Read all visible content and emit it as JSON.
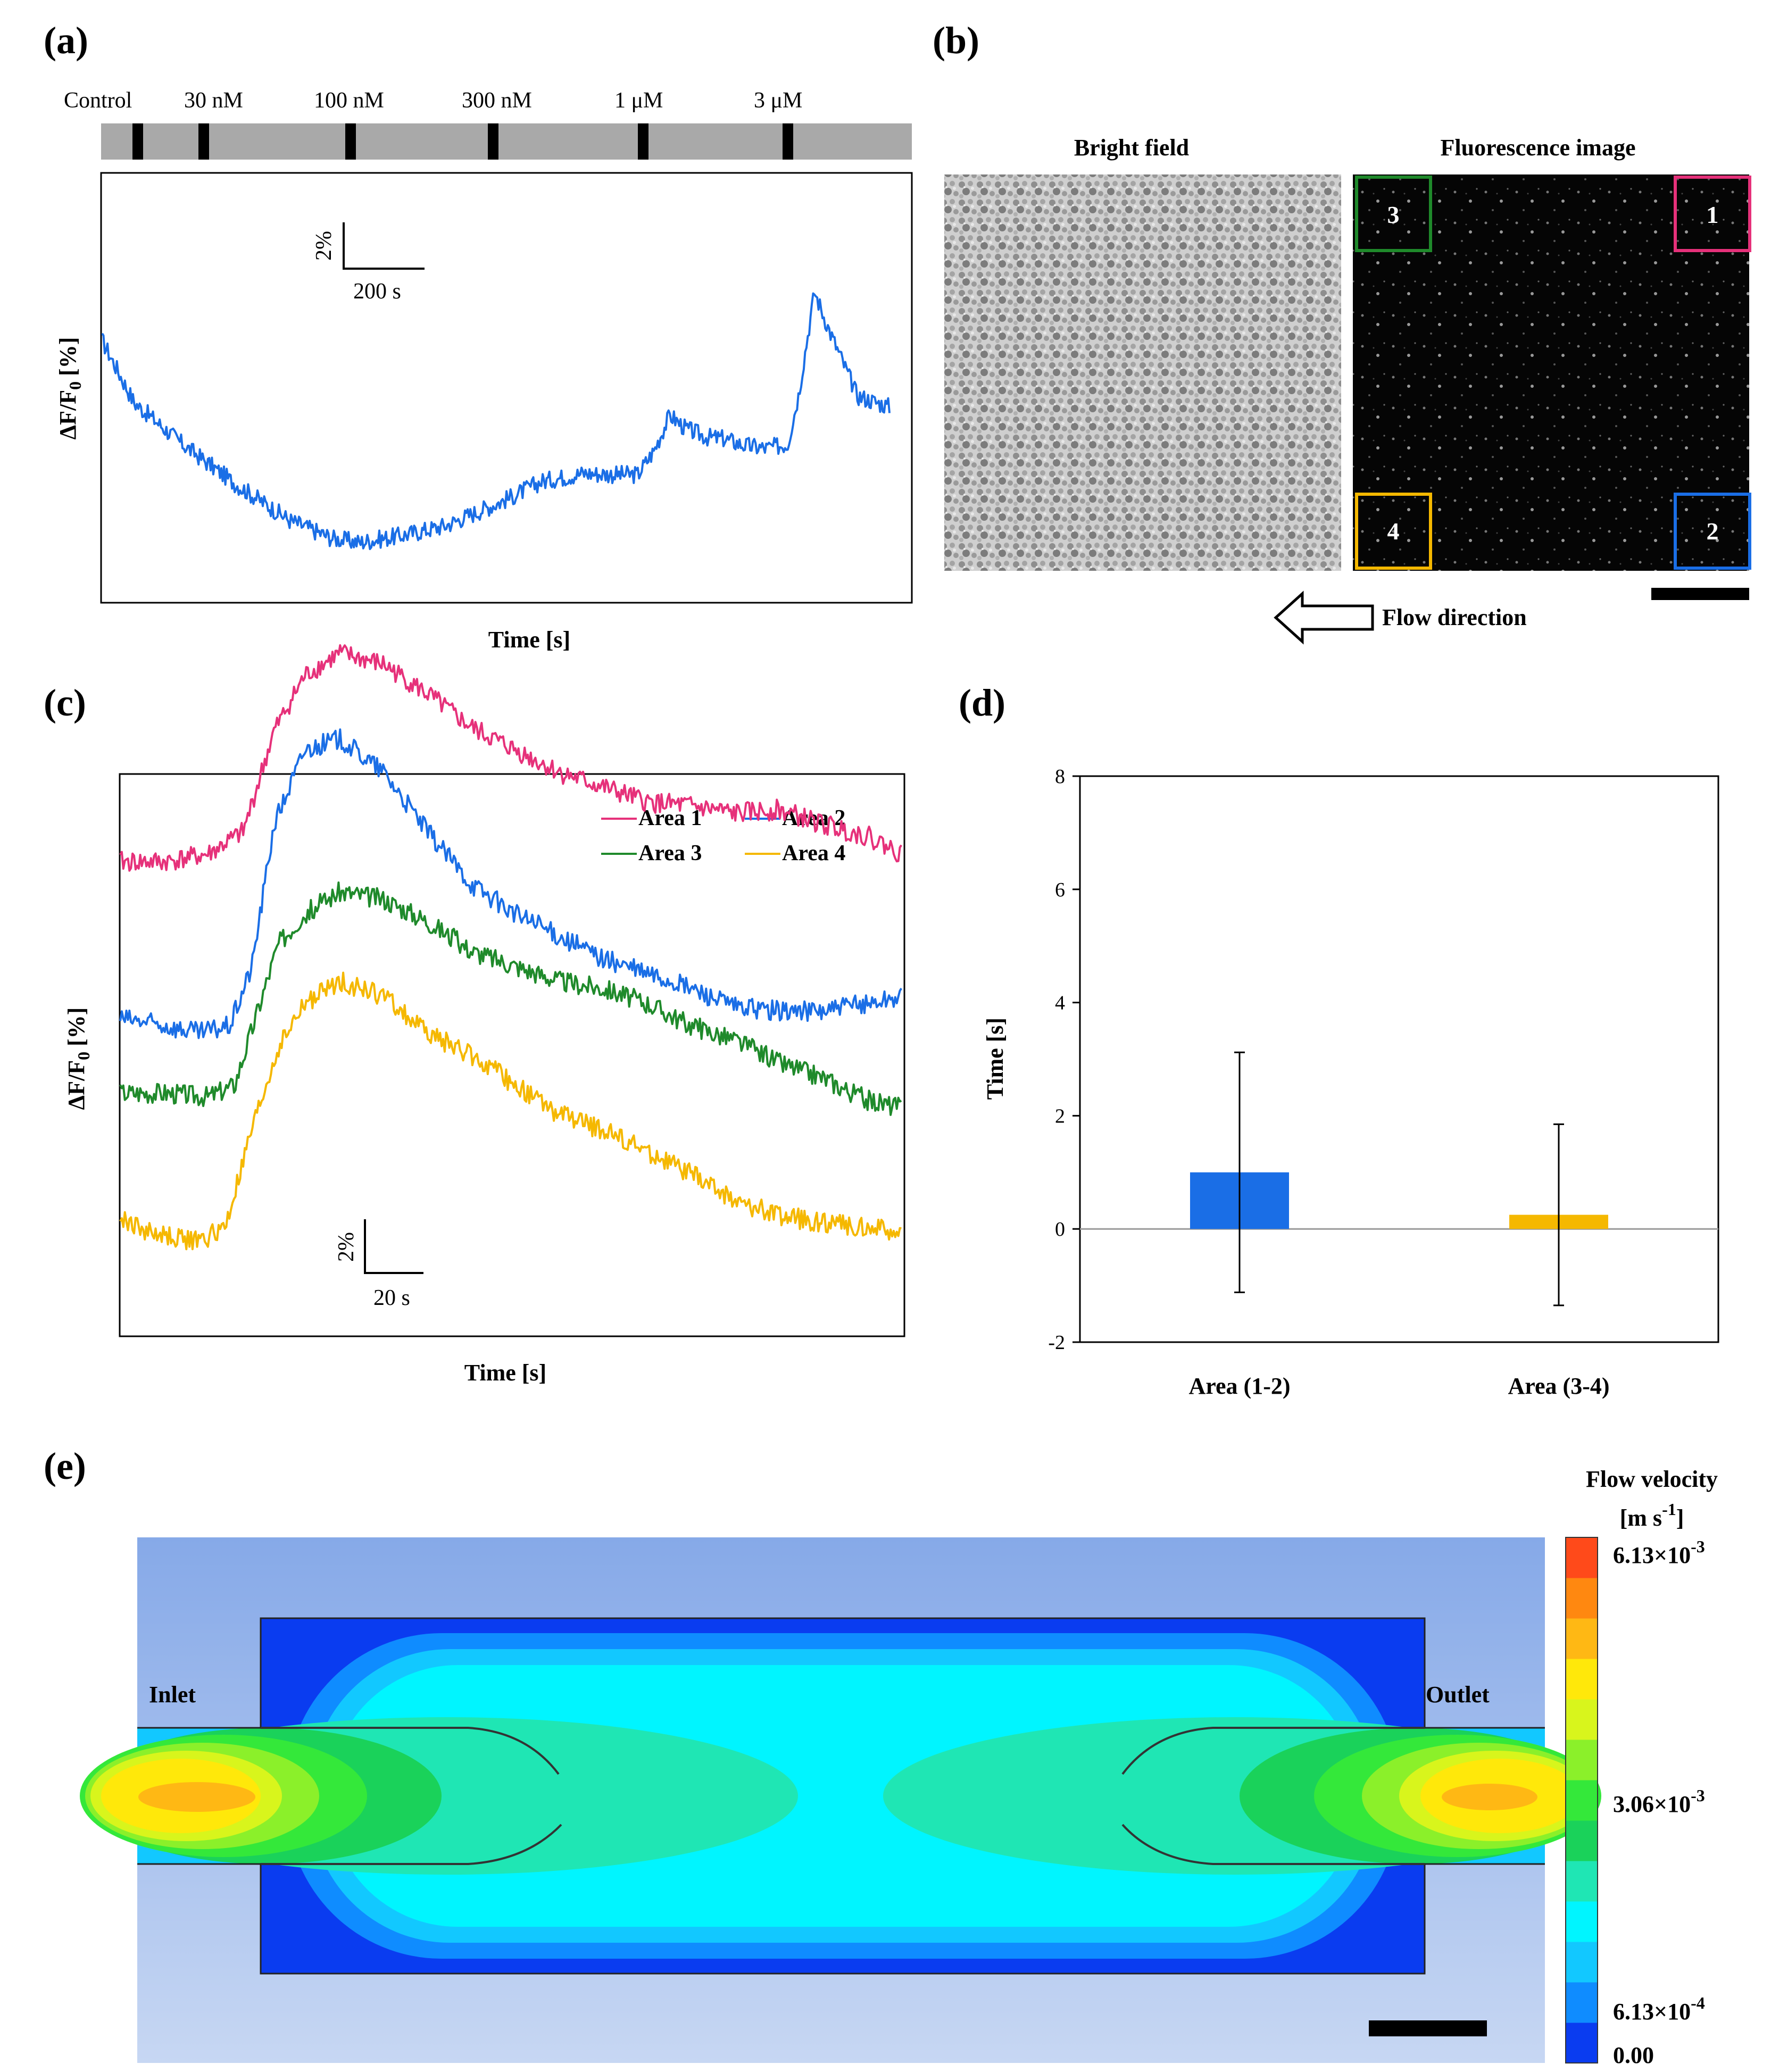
{
  "colors": {
    "blue": "#1a6ee6",
    "pink": "#e6317a",
    "green": "#1f8a2b",
    "yellow": "#f5b800",
    "bar_gray": "#a9a9a9"
  },
  "panel_a": {
    "label": "(a)",
    "timeline_labels": [
      "Control",
      "30 nM",
      "100 nM",
      "300 nM",
      "1 μM",
      "3 μM"
    ],
    "scalebar_y": "2%",
    "scalebar_x": "200 s",
    "ylabel": "ΔF/F",
    "ylabel_sub": "0",
    "ylabel_unit": "[%]",
    "xlabel": "Time [s]"
  },
  "panel_b": {
    "label": "(b)",
    "bright_title": "Bright field",
    "fluor_title": "Fluorescence image",
    "boxes": [
      {
        "num": "1",
        "color": "#e6317a"
      },
      {
        "num": "2",
        "color": "#1a6ee6"
      },
      {
        "num": "3",
        "color": "#1f8a2b"
      },
      {
        "num": "4",
        "color": "#f5b800"
      }
    ],
    "flow_label": "Flow direction"
  },
  "panel_c": {
    "label": "(c)",
    "legend": [
      "Area 1",
      "Area 2",
      "Area 3",
      "Area 4"
    ],
    "scalebar_y": "2%",
    "scalebar_x": "20 s",
    "ylabel": "ΔF/F",
    "ylabel_sub": "0",
    "ylabel_unit": "[%]",
    "xlabel": "Time [s]"
  },
  "chart_data": [
    {
      "type": "line",
      "panel": "(a)",
      "xlabel": "Time [s]",
      "ylabel": "ΔF/F0 [%]",
      "series": [
        {
          "color": "#1a6ee6",
          "x": [
            0,
            60,
            150,
            250,
            350,
            430,
            480,
            560,
            640,
            700,
            760,
            820,
            900,
            960,
            1000,
            1030,
            1060,
            1090,
            1130,
            1160,
            1200,
            1240,
            1280,
            1300,
            1330,
            1360,
            1410,
            1470
          ],
          "y": [
            0,
            -4.5,
            -7.5,
            -10.4,
            -13.0,
            -14.3,
            -14.6,
            -14.1,
            -13.4,
            -12.4,
            -11.4,
            -10.2,
            -9.6,
            -9.7,
            -9.7,
            -8.0,
            -5.4,
            -6.4,
            -7.0,
            -7.1,
            -7.6,
            -7.8,
            -7.5,
            -4.0,
            3.5,
            0.5,
            -4.0,
            -4.8
          ]
        }
      ]
    },
    {
      "type": "line",
      "panel": "(c)",
      "xlabel": "Time [s]",
      "ylabel": "ΔF/F0 [%]",
      "series": [
        {
          "name": "Area 1",
          "color": "#e6317a",
          "x": [
            0,
            10,
            20,
            28,
            35,
            42,
            50,
            60,
            70,
            80,
            90,
            100,
            110,
            120,
            130,
            140,
            150,
            160,
            170,
            178
          ],
          "y": [
            14.0,
            14.0,
            14.2,
            14.8,
            17.5,
            19.0,
            19.6,
            19.3,
            18.5,
            17.6,
            17.0,
            16.4,
            16.0,
            15.6,
            15.5,
            15.3,
            15.4,
            15.0,
            14.7,
            14.2
          ]
        },
        {
          "name": "Area 2",
          "color": "#1a6ee6",
          "x": [
            0,
            10,
            18,
            25,
            30,
            35,
            42,
            50,
            60,
            70,
            80,
            90,
            100,
            110,
            120,
            130,
            140,
            150,
            160,
            170,
            178
          ],
          "y": [
            9.8,
            9.6,
            9.4,
            9.6,
            11.2,
            15.0,
            17.0,
            17.3,
            16.4,
            14.8,
            13.4,
            12.6,
            12.0,
            11.4,
            11.0,
            10.6,
            10.1,
            10.0,
            10.0,
            10.2,
            10.4
          ]
        },
        {
          "name": "Area 3",
          "color": "#1f8a2b",
          "x": [
            0,
            10,
            20,
            26,
            30,
            36,
            42,
            50,
            60,
            70,
            80,
            90,
            100,
            110,
            120,
            130,
            140,
            150,
            160,
            170,
            178
          ],
          "y": [
            7.8,
            7.8,
            7.7,
            8.0,
            9.5,
            11.8,
            12.6,
            13.2,
            13.0,
            12.4,
            11.6,
            11.2,
            10.8,
            10.6,
            10.2,
            9.6,
            9.2,
            8.6,
            8.2,
            7.6,
            7.4
          ]
        },
        {
          "name": "Area 4",
          "color": "#f5b800",
          "x": [
            0,
            8,
            18,
            24,
            30,
            36,
            42,
            50,
            60,
            70,
            80,
            90,
            100,
            110,
            120,
            130,
            140,
            150,
            160,
            170,
            178
          ],
          "y": [
            4.4,
            4.0,
            3.8,
            4.2,
            6.8,
            9.0,
            10.2,
            10.8,
            10.4,
            9.4,
            8.8,
            8.0,
            7.2,
            6.8,
            6.2,
            5.6,
            4.9,
            4.5,
            4.3,
            4.2,
            4.0
          ]
        }
      ]
    },
    {
      "type": "bar",
      "panel": "(d)",
      "categories": [
        "Area (1-2)",
        "Area (3-4)"
      ],
      "values": [
        1.0,
        0.25
      ],
      "error_low": [
        -1.12,
        -1.35
      ],
      "error_high": [
        3.12,
        1.85
      ],
      "bar_colors": [
        "#1a6ee6",
        "#f5b800"
      ],
      "xlabel": "",
      "ylabel": "Time [s]",
      "ylim": [
        -2,
        8
      ],
      "yticks": [
        "8",
        "6",
        "4",
        "2",
        "0",
        "-2"
      ]
    },
    {
      "type": "heatmap",
      "panel": "(e)",
      "title": "Flow velocity",
      "unit_base": "[m s",
      "unit_sup": "-1",
      "unit_end": "]",
      "colorbar_labels": [
        {
          "mant": "6.13×10",
          "exp": "-3"
        },
        {
          "mant": "3.06×10",
          "exp": "-3"
        },
        {
          "mant": "6.13×10",
          "exp": "-4"
        },
        {
          "mant": "0.00",
          "exp": ""
        }
      ],
      "colorbar_colors": [
        "#0a3cf0",
        "#0f8cff",
        "#12c8ff",
        "#00f5ff",
        "#1fe6b4",
        "#1ad25a",
        "#34e83a",
        "#8bf02a",
        "#d8f51c",
        "#ffe80a",
        "#ffb814",
        "#ff8810",
        "#ff4a1a"
      ],
      "inlet_label": "Inlet",
      "outlet_label": "Outlet"
    }
  ]
}
